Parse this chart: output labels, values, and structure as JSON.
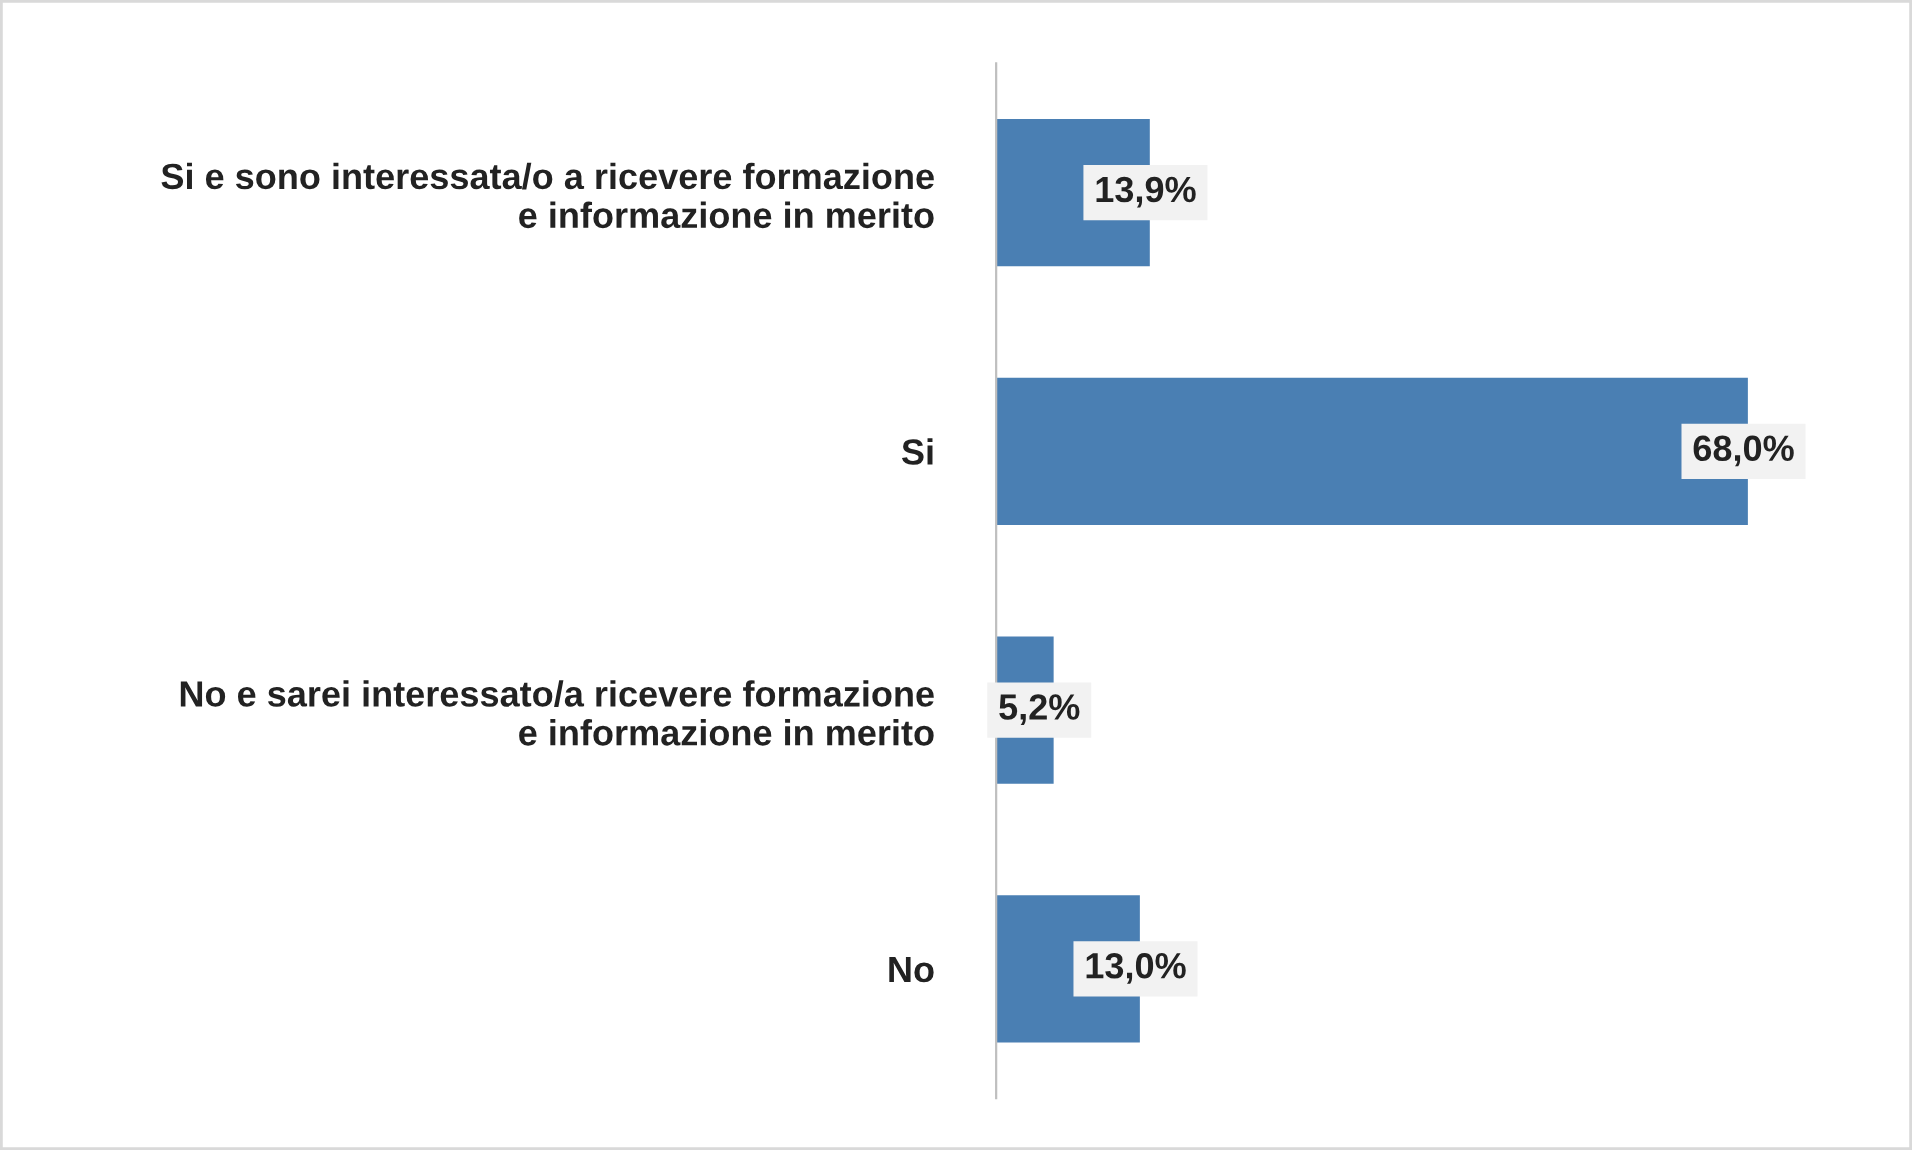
{
  "chart_data": {
    "type": "bar",
    "orientation": "horizontal",
    "categories": [
      "Si e sono interessata/o a ricevere formazione\ne informazione in merito",
      "Si",
      "No e sarei interessato/a ricevere formazione\ne informazione in merito",
      "No"
    ],
    "values": [
      13.9,
      68.0,
      5.2,
      13.0
    ],
    "value_labels": [
      "13,9%",
      "68,0%",
      "5,2%",
      "13,0%"
    ],
    "color": "#4a7fb3"
  }
}
